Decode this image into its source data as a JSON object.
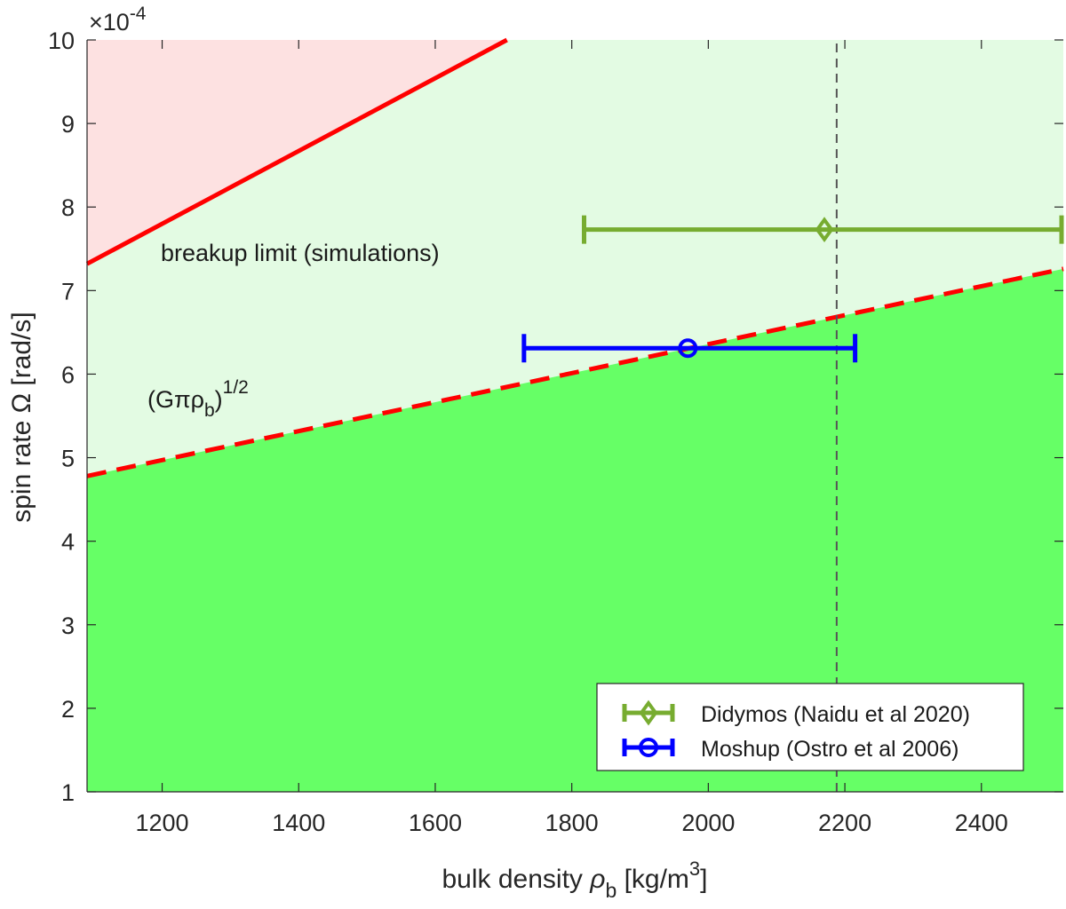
{
  "chart_data": {
    "type": "line",
    "xlabel": "bulk density ρb [kg/m3]",
    "xlabel_parts": {
      "pre": "bulk density ",
      "rho": "ρ",
      "sub": "b",
      "mid": " [kg/m",
      "sup": "3",
      "post": "]"
    },
    "ylabel": "spin rate Ω [rad/s]",
    "y_exponent": {
      "base": "×10",
      "power": "-4"
    },
    "xlim": [
      1090,
      2520
    ],
    "ylim": [
      1,
      10
    ],
    "x_ticks": [
      1200,
      1400,
      1600,
      1800,
      2000,
      2200,
      2400
    ],
    "y_ticks": [
      1,
      2,
      3,
      4,
      5,
      6,
      7,
      8,
      9,
      10
    ],
    "grid": false,
    "regions": [
      {
        "name": "stable",
        "color": "#66ff66",
        "bounded_by": "(Gπρb)^(1/2)",
        "side": "below"
      },
      {
        "name": "intermediate",
        "color": "#e3fbe3",
        "side": "between"
      },
      {
        "name": "breakup",
        "color": "#fde1e1",
        "bounded_by": "breakup limit (simulations)",
        "side": "above"
      }
    ],
    "series": [
      {
        "style": "solid",
        "color": "#ff0000",
        "x": [
          1090,
          1705
        ],
        "y": [
          7.32,
          10.0
        ]
      },
      {
        "style": "dashed",
        "color": "#ff0000",
        "x": [
          1090,
          2520
        ],
        "y": [
          4.78,
          7.26
        ]
      },
      {
        "style": "dashed",
        "color": "#555555",
        "x": [
          2188,
          2188
        ],
        "y": [
          1,
          10
        ]
      }
    ],
    "points": [
      {
        "name": "Didymos (Naidu et al 2020)",
        "marker": "diamond",
        "color": "#77ac30",
        "x": 2170,
        "y": 7.73,
        "xerr_low": 1818,
        "xerr_high": 2522
      },
      {
        "name": "Moshup (Ostro et al 2006)",
        "marker": "circle",
        "color": "#0000ff",
        "x": 1970,
        "y": 6.31,
        "xerr_low": 1730,
        "xerr_high": 2215
      }
    ],
    "annotations": [
      {
        "text": "breakup limit (simulations)",
        "x": 1200,
        "y": 7.38
      },
      {
        "text_base": "(Gπρ",
        "text_sub": "b",
        "text_close": ")",
        "text_sup": "1/2",
        "x": 1200,
        "y": 5.52
      }
    ],
    "legend_position": "bottom-right"
  }
}
